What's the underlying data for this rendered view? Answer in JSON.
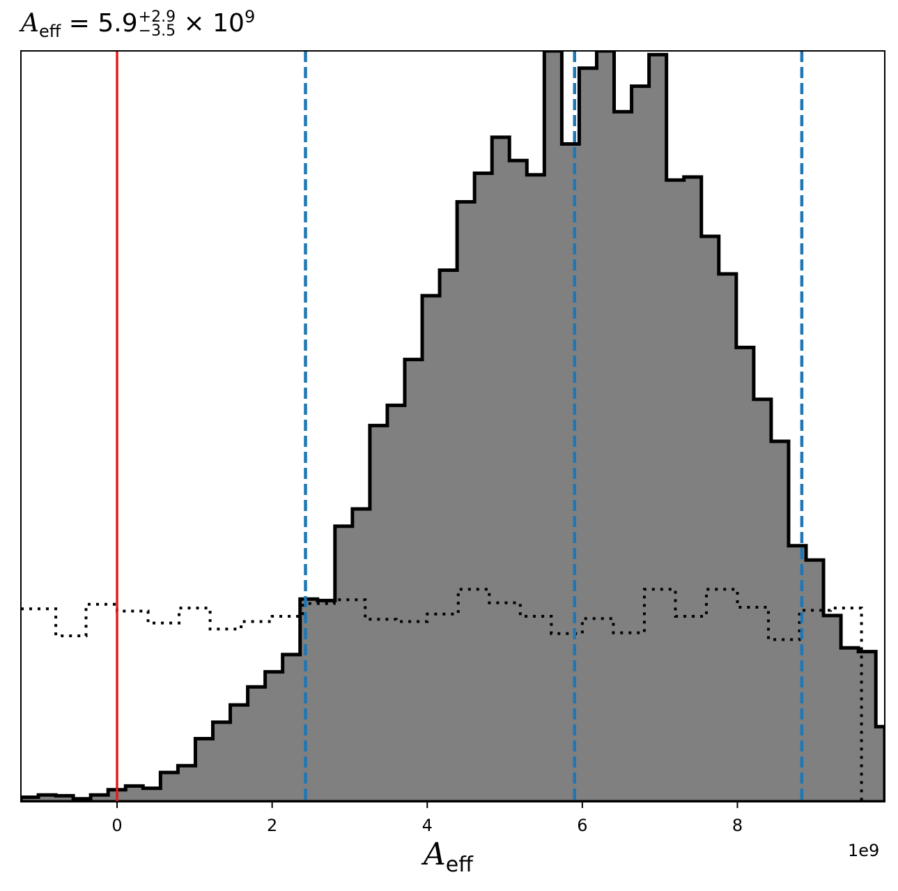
{
  "chart_data": {
    "type": "histogram",
    "title": {
      "symbol": "A",
      "subscript": "eff",
      "equals": "=",
      "median": "5.9",
      "upper": "+2.9",
      "lower": "−3.5",
      "times": "×",
      "base": "10",
      "exponent": "9"
    },
    "xlabel": {
      "symbol": "A",
      "subscript": "eff"
    },
    "x_offset_label": "1e9",
    "xlim": [
      -1.24,
      9.9
    ],
    "ylim": [
      0,
      1
    ],
    "x_ticks": [
      {
        "value": 0,
        "label": "0"
      },
      {
        "value": 2,
        "label": "2"
      },
      {
        "value": 4,
        "label": "4"
      },
      {
        "value": 6,
        "label": "6"
      },
      {
        "value": 8,
        "label": "8"
      }
    ],
    "y_ticks_shown": false,
    "posterior": {
      "style": "filled step, gray fill, black edge",
      "fill_color": "#808080",
      "edge_color": "#000000",
      "bin_edges": [
        -1.24,
        -1.015,
        -0.79,
        -0.565,
        -0.34,
        -0.115,
        0.11,
        0.335,
        0.56,
        0.785,
        1.01,
        1.235,
        1.46,
        1.685,
        1.91,
        2.135,
        2.36,
        2.585,
        2.81,
        3.035,
        3.26,
        3.485,
        3.71,
        3.935,
        4.16,
        4.385,
        4.61,
        4.835,
        5.06,
        5.285,
        5.51,
        5.735,
        5.96,
        6.185,
        6.41,
        6.635,
        6.86,
        7.085,
        7.31,
        7.535,
        7.76,
        7.985,
        8.21,
        8.435,
        8.66,
        8.885,
        9.11,
        9.335,
        9.56,
        9.785,
        9.9
      ],
      "heights": [
        0.006,
        0.009,
        0.008,
        0.004,
        0.009,
        0.016,
        0.021,
        0.018,
        0.039,
        0.048,
        0.084,
        0.106,
        0.129,
        0.153,
        0.173,
        0.196,
        0.27,
        0.268,
        0.367,
        0.39,
        0.501,
        0.528,
        0.589,
        0.674,
        0.708,
        0.799,
        0.837,
        0.885,
        0.854,
        0.835,
        1.0,
        0.876,
        0.977,
        1.0,
        0.919,
        0.953,
        0.995,
        0.828,
        0.832,
        0.753,
        0.703,
        0.605,
        0.536,
        0.48,
        0.341,
        0.322,
        0.248,
        0.205,
        0.2,
        0.1
      ]
    },
    "prior": {
      "style": "dotted step, black",
      "color": "#000000",
      "bin_edges": [
        -1.24,
        -0.79,
        -0.4,
        0.0,
        0.4,
        0.8,
        1.2,
        1.6,
        2.0,
        2.4,
        2.8,
        3.2,
        3.6,
        4.0,
        4.4,
        4.8,
        5.2,
        5.6,
        6.0,
        6.4,
        6.8,
        7.2,
        7.6,
        8.0,
        8.4,
        8.8,
        9.2,
        9.6,
        9.9
      ],
      "heights": [
        0.257,
        0.221,
        0.263,
        0.254,
        0.238,
        0.258,
        0.23,
        0.24,
        0.247,
        0.264,
        0.269,
        0.243,
        0.24,
        0.25,
        0.283,
        0.265,
        0.247,
        0.224,
        0.244,
        0.225,
        0.283,
        0.247,
        0.283,
        0.259,
        0.216,
        0.255,
        0.258,
        0.0
      ]
    },
    "truth_line": {
      "x": 0,
      "color": "#e41a1c"
    },
    "quantile_lines": {
      "values": [
        2.43,
        5.9,
        8.83
      ],
      "color": "#1f77b4",
      "style": "dashed"
    },
    "grid": false
  }
}
